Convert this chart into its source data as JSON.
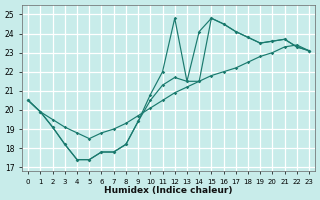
{
  "xlabel": "Humidex (Indice chaleur)",
  "xlim": [
    -0.5,
    23.5
  ],
  "ylim": [
    16.8,
    25.5
  ],
  "yticks": [
    17,
    18,
    19,
    20,
    21,
    22,
    23,
    24,
    25
  ],
  "xticks": [
    0,
    1,
    2,
    3,
    4,
    5,
    6,
    7,
    8,
    9,
    10,
    11,
    12,
    13,
    14,
    15,
    16,
    17,
    18,
    19,
    20,
    21,
    22,
    23
  ],
  "bg_color": "#c8ecea",
  "grid_color": "#ffffff",
  "line_color": "#1a7a6e",
  "line1_y": [
    20.5,
    19.9,
    19.5,
    19.1,
    18.8,
    18.5,
    18.8,
    19.0,
    19.3,
    19.7,
    20.1,
    20.5,
    20.9,
    21.2,
    21.5,
    21.8,
    22.0,
    22.2,
    22.5,
    22.8,
    23.0,
    23.3,
    23.4,
    23.1
  ],
  "line2_y": [
    20.5,
    19.9,
    19.1,
    18.2,
    17.4,
    17.4,
    17.8,
    17.8,
    18.2,
    19.4,
    20.8,
    22.0,
    24.8,
    21.5,
    24.1,
    24.8,
    24.5,
    24.1,
    23.8,
    23.5,
    23.6,
    23.7,
    23.3,
    23.1
  ],
  "line3_y": [
    20.5,
    19.9,
    19.1,
    18.2,
    17.4,
    17.4,
    17.8,
    17.8,
    18.2,
    19.4,
    20.5,
    21.3,
    21.7,
    21.5,
    21.5,
    24.8,
    24.5,
    24.1,
    23.8,
    23.5,
    23.6,
    23.7,
    23.3,
    23.1
  ]
}
